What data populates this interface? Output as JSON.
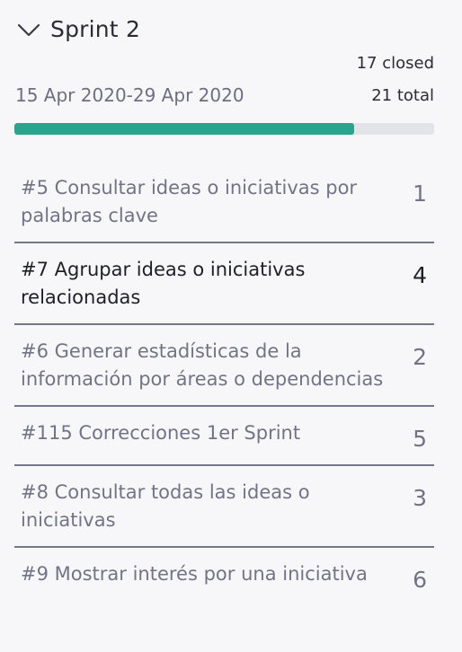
{
  "sprint": {
    "title": "Sprint 2",
    "closed_label": "17 closed",
    "total_label": "21 total",
    "date_range": "15 Apr 2020-29 Apr 2020",
    "progress": 0.81,
    "colors": {
      "progress_fill": "#2aa48a",
      "progress_track": "#e3e3ea"
    },
    "icons": {
      "collapse": "chevron-down-icon"
    }
  },
  "issues": [
    {
      "title": "#5 Consultar ideas o iniciativas por palabras clave",
      "points": "1",
      "active": false
    },
    {
      "title": "#7 Agrupar ideas o iniciativas relacionadas",
      "points": "4",
      "active": true
    },
    {
      "title": "#6 Generar estadísticas de la información por áreas o dependencias",
      "points": "2",
      "active": false
    },
    {
      "title": "#115 Correcciones 1er Sprint",
      "points": "5",
      "active": false
    },
    {
      "title": "#8 Consultar todas las ideas o iniciativas",
      "points": "3",
      "active": false
    },
    {
      "title": "#9 Mostrar interés por una iniciativa",
      "points": "6",
      "active": false
    }
  ]
}
